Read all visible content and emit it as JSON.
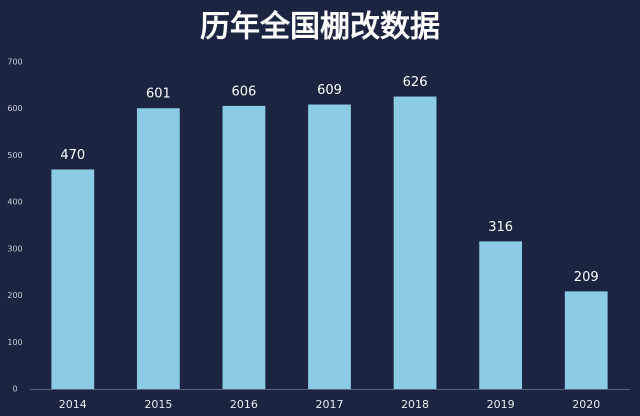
{
  "chart_data": {
    "type": "bar",
    "title": "历年全国棚改数据",
    "categories": [
      "2014",
      "2015",
      "2016",
      "2017",
      "2018",
      "2019",
      "2020"
    ],
    "values": [
      470,
      601,
      606,
      609,
      626,
      316,
      209
    ],
    "color": "#8ccbe6",
    "ylim": [
      0,
      700
    ],
    "yticks": [
      0,
      100,
      200,
      300,
      400,
      500,
      600,
      700
    ],
    "grid": false
  }
}
